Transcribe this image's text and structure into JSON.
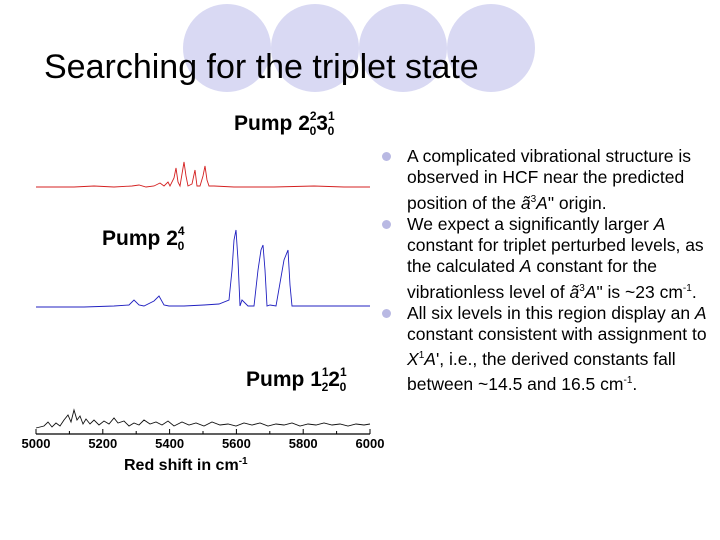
{
  "slide": {
    "title": "Searching for the triplet state",
    "accent_color": "#d9d9f3",
    "bullet_color": "#b9b9e3"
  },
  "figure": {
    "panels": [
      {
        "label": "Pump",
        "base": "2",
        "sup1": "2",
        "sub1": "0",
        "base2": "3",
        "sup2": "1",
        "sub2": "0",
        "trace_color": "#d42020"
      },
      {
        "label": "Pump",
        "base": "2",
        "sup1": "4",
        "sub1": "0",
        "trace_color": "#2020c0"
      },
      {
        "label": "Pump",
        "base": "1",
        "sup1": "1",
        "sub1": "2",
        "base2": "2",
        "sup2": "1",
        "sub2": "0",
        "trace_color": "#111111"
      }
    ],
    "x_ticks": [
      "5000",
      "5200",
      "5400",
      "5600",
      "5800",
      "6000"
    ],
    "x_label_main": "Red shift in cm",
    "x_label_sup": "-1"
  },
  "bullets": [
    {
      "pre": "A complicated vibrational structure is observed in HCF near the predicted position of the ",
      "state": "ã",
      "state_sup": "3",
      "state_sym": "A",
      "state_prime": "\"",
      "post": " origin."
    },
    {
      "pre": "We expect a significantly larger ",
      "italic1": "A",
      "mid1": " constant for triplet perturbed levels, as the calculated ",
      "italic2": "A",
      "mid2": " constant for the vibrationless level of ",
      "state": "ã",
      "state_sup": "3",
      "state_sym": "A",
      "state_prime": "\"",
      "post": " is ~23 cm",
      "post_sup": "-1",
      "post_end": "."
    },
    {
      "pre": "All six levels in this region display an ",
      "italic1": "A",
      "mid1": " constant consistent with assignment to ",
      "state": "X",
      "state_sup": "1",
      "state_sym": "A",
      "state_prime": "'",
      "post": ", i.e., the derived constants fall between ~14.5 and 16.5 cm",
      "post_sup": "-1",
      "post_end": "."
    }
  ]
}
